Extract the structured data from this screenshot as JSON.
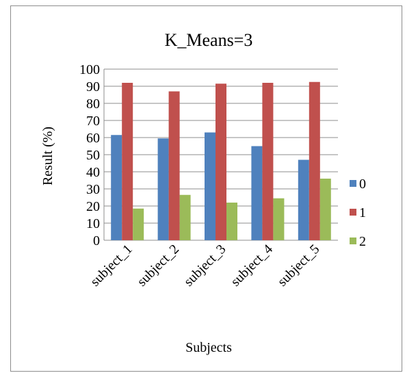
{
  "chart_data": {
    "type": "bar",
    "title": "K_Means=3",
    "xlabel": "Subjects",
    "ylabel": "Result (%)",
    "ylim": [
      0,
      100
    ],
    "yticks": [
      0,
      10,
      20,
      30,
      40,
      50,
      60,
      70,
      80,
      90,
      100
    ],
    "categories": [
      "subject_1",
      "subject_2",
      "subject_3",
      "subject_4",
      "subject_5"
    ],
    "series": [
      {
        "name": "0",
        "color": "#4f81bd",
        "values": [
          61.5,
          59.5,
          63,
          55,
          47
        ]
      },
      {
        "name": "1",
        "color": "#c0504d",
        "values": [
          92,
          87,
          91.5,
          92,
          92.5
        ]
      },
      {
        "name": "2",
        "color": "#9bbb59",
        "values": [
          18.5,
          26.5,
          22,
          24.5,
          36
        ]
      }
    ],
    "grid": true,
    "legend": "right"
  }
}
